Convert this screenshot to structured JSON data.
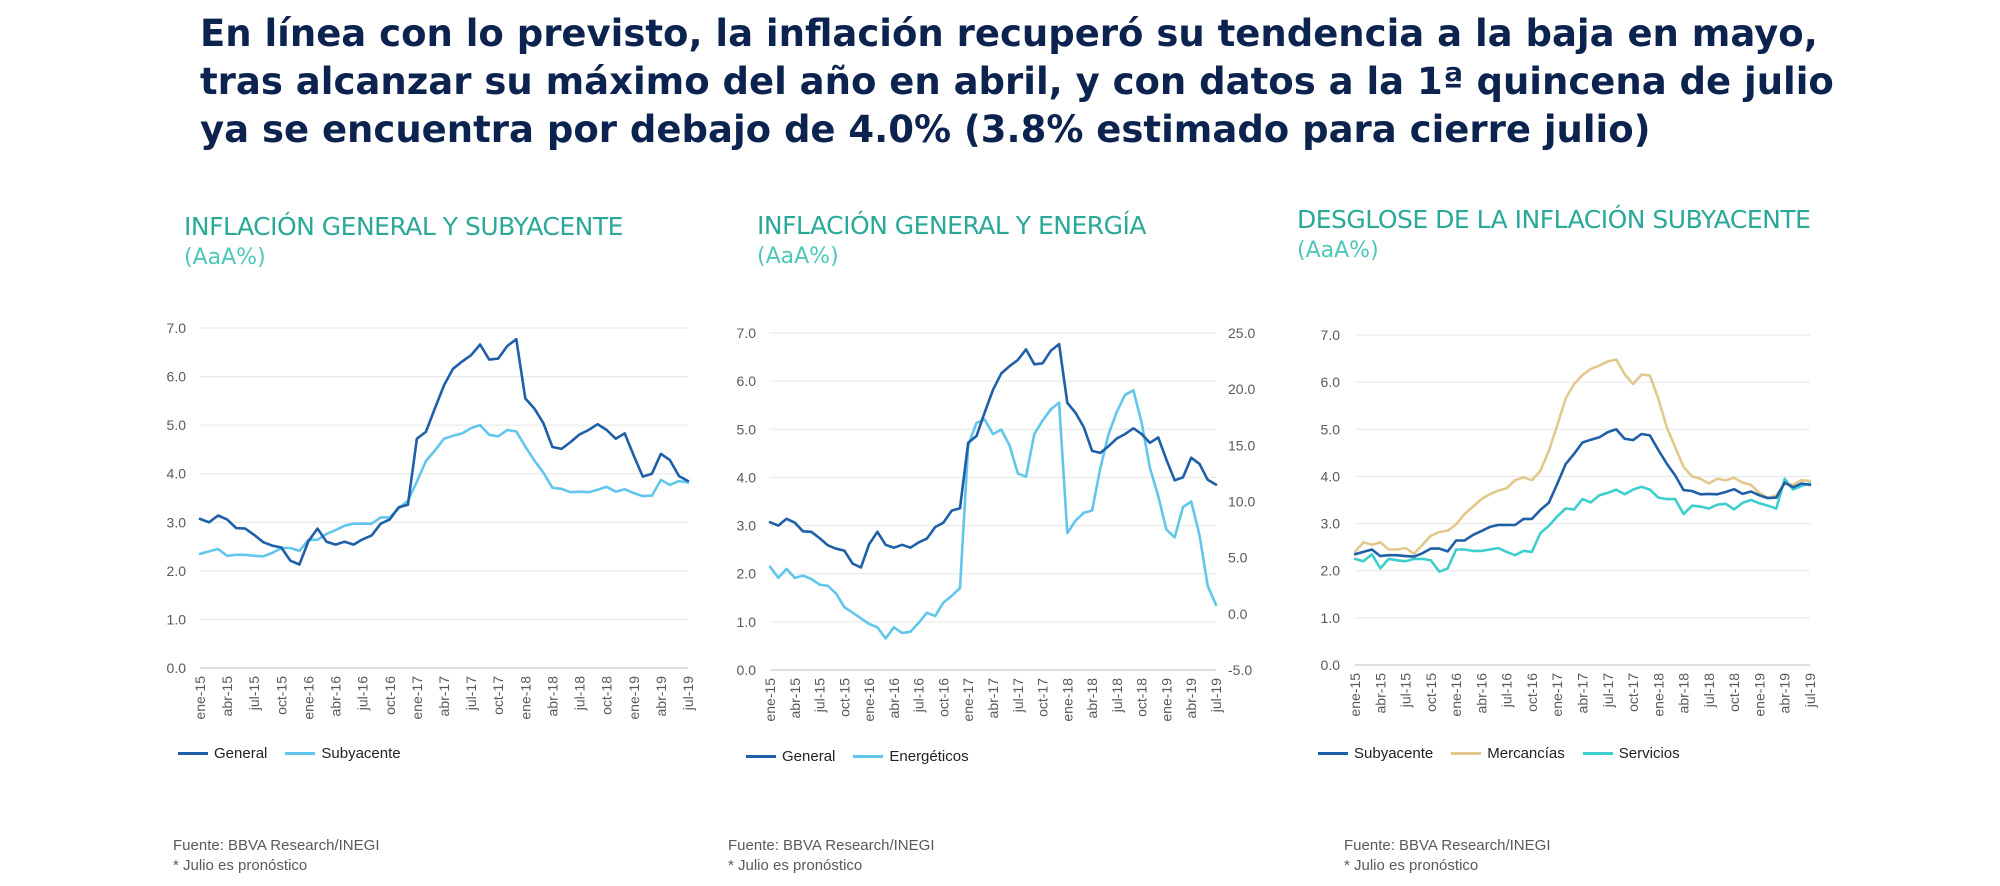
{
  "headline": {
    "line1": "En línea con lo previsto, la inflación recuperó su tendencia a la baja en mayo,",
    "line2": "tras alcanzar su máximo del año en abril, y con datos a la 1ª quincena de julio",
    "line3": "ya se encuentra por debajo de 4.0% (3.8% estimado para cierre julio)"
  },
  "footer": {
    "source": "Fuente: BBVA Research/INEGI",
    "note": "* Julio es pronóstico"
  },
  "chart_data": [
    {
      "type": "line",
      "title": "INFLACIÓN GENERAL Y SUBYACENTE",
      "subtitle": "(AaA%)",
      "ylim": [
        0,
        7
      ],
      "yticks": [
        "0.0",
        "1.0",
        "2.0",
        "3.0",
        "4.0",
        "5.0",
        "6.0",
        "7.0"
      ],
      "x_tick_labels": [
        "ene-15",
        "abr-15",
        "jul-15",
        "oct-15",
        "ene-16",
        "abr-16",
        "jul-16",
        "oct-16",
        "ene-17",
        "abr-17",
        "jul-17",
        "oct-17",
        "ene-18",
        "abr-18",
        "jul-18",
        "oct-18",
        "ene-19",
        "abr-19",
        "jul-19"
      ],
      "series": [
        {
          "name": "General",
          "color": "#1f5fa8",
          "axis": "left",
          "values": [
            3.07,
            3.0,
            3.14,
            3.06,
            2.88,
            2.87,
            2.74,
            2.59,
            2.52,
            2.48,
            2.21,
            2.13,
            2.61,
            2.87,
            2.6,
            2.54,
            2.6,
            2.54,
            2.65,
            2.73,
            2.97,
            3.06,
            3.31,
            3.36,
            4.72,
            4.86,
            5.35,
            5.82,
            6.16,
            6.31,
            6.44,
            6.66,
            6.35,
            6.37,
            6.63,
            6.77,
            5.55,
            5.34,
            5.04,
            4.55,
            4.51,
            4.65,
            4.81,
            4.9,
            5.02,
            4.9,
            4.72,
            4.83,
            4.37,
            3.94,
            4.0,
            4.41,
            4.28,
            3.95,
            3.85
          ]
        },
        {
          "name": "Subyacente",
          "color": "#62c6ec",
          "axis": "left",
          "values": [
            2.35,
            2.4,
            2.45,
            2.31,
            2.33,
            2.33,
            2.31,
            2.3,
            2.37,
            2.47,
            2.47,
            2.41,
            2.64,
            2.64,
            2.76,
            2.84,
            2.93,
            2.97,
            2.97,
            2.97,
            3.1,
            3.1,
            3.29,
            3.44,
            3.84,
            4.26,
            4.48,
            4.72,
            4.78,
            4.83,
            4.94,
            5.0,
            4.8,
            4.77,
            4.9,
            4.87,
            4.56,
            4.27,
            4.02,
            3.71,
            3.69,
            3.62,
            3.63,
            3.62,
            3.67,
            3.73,
            3.63,
            3.68,
            3.6,
            3.54,
            3.55,
            3.87,
            3.77,
            3.85,
            3.82
          ]
        }
      ],
      "legend": [
        "General",
        "Subyacente"
      ]
    },
    {
      "type": "line",
      "title": "INFLACIÓN GENERAL Y ENERGÍA",
      "subtitle": "(AaA%)",
      "ylim": [
        0,
        7
      ],
      "y2lim": [
        -5,
        25
      ],
      "yticks": [
        "0.0",
        "1.0",
        "2.0",
        "3.0",
        "4.0",
        "5.0",
        "6.0",
        "7.0"
      ],
      "y2ticks": [
        "-5.0",
        "0.0",
        "5.0",
        "10.0",
        "15.0",
        "20.0",
        "25.0"
      ],
      "x_tick_labels": [
        "ene-15",
        "abr-15",
        "jul-15",
        "oct-15",
        "ene-16",
        "abr-16",
        "jul-16",
        "oct-16",
        "ene-17",
        "abr-17",
        "jul-17",
        "oct-17",
        "ene-18",
        "abr-18",
        "jul-18",
        "oct-18",
        "ene-19",
        "abr-19",
        "jul-19"
      ],
      "series": [
        {
          "name": "General",
          "color": "#1f5fa8",
          "axis": "left",
          "values": [
            3.07,
            3.0,
            3.14,
            3.06,
            2.88,
            2.87,
            2.74,
            2.59,
            2.52,
            2.48,
            2.21,
            2.13,
            2.61,
            2.87,
            2.6,
            2.54,
            2.6,
            2.54,
            2.65,
            2.73,
            2.97,
            3.06,
            3.31,
            3.36,
            4.72,
            4.86,
            5.35,
            5.82,
            6.16,
            6.31,
            6.44,
            6.66,
            6.35,
            6.37,
            6.63,
            6.77,
            5.55,
            5.34,
            5.04,
            4.55,
            4.51,
            4.65,
            4.81,
            4.9,
            5.02,
            4.9,
            4.72,
            4.83,
            4.37,
            3.94,
            4.0,
            4.41,
            4.28,
            3.95,
            3.85
          ]
        },
        {
          "name": "Energéticos",
          "color": "#62c6ec",
          "axis": "right",
          "values": [
            4.2,
            3.2,
            4.0,
            3.2,
            3.4,
            3.1,
            2.6,
            2.5,
            1.8,
            0.6,
            0.1,
            -0.4,
            -0.9,
            -1.2,
            -2.2,
            -1.2,
            -1.7,
            -1.6,
            -0.8,
            0.1,
            -0.2,
            1.0,
            1.6,
            2.3,
            15.0,
            17.0,
            17.3,
            16.0,
            16.4,
            15.0,
            12.5,
            12.2,
            16.0,
            17.2,
            18.2,
            18.8,
            7.2,
            8.3,
            9.0,
            9.2,
            13.0,
            16.0,
            18.0,
            19.5,
            19.9,
            17.0,
            13.0,
            10.5,
            7.5,
            6.8,
            9.5,
            10.0,
            7.0,
            2.5,
            0.8
          ]
        }
      ],
      "legend": [
        "General",
        "Energéticos"
      ]
    },
    {
      "type": "line",
      "title": "DESGLOSE DE LA INFLACIÓN SUBYACENTE",
      "subtitle": "(AaA%)",
      "ylim": [
        0,
        7
      ],
      "yticks": [
        "0.0",
        "1.0",
        "2.0",
        "3.0",
        "4.0",
        "5.0",
        "6.0",
        "7.0"
      ],
      "x_tick_labels": [
        "ene-15",
        "abr-15",
        "jul-15",
        "oct-15",
        "ene-16",
        "abr-16",
        "jul-16",
        "oct-16",
        "ene-17",
        "abr-17",
        "jul-17",
        "oct-17",
        "ene-18",
        "abr-18",
        "jul-18",
        "oct-18",
        "ene-19",
        "abr-19",
        "jul-19"
      ],
      "series": [
        {
          "name": "Subyacente",
          "color": "#1f5fa8",
          "axis": "left",
          "values": [
            2.35,
            2.4,
            2.45,
            2.31,
            2.33,
            2.33,
            2.31,
            2.3,
            2.37,
            2.47,
            2.47,
            2.41,
            2.64,
            2.64,
            2.76,
            2.84,
            2.93,
            2.97,
            2.97,
            2.97,
            3.1,
            3.1,
            3.29,
            3.44,
            3.84,
            4.26,
            4.48,
            4.72,
            4.78,
            4.83,
            4.94,
            5.0,
            4.8,
            4.77,
            4.9,
            4.87,
            4.56,
            4.27,
            4.02,
            3.71,
            3.69,
            3.62,
            3.63,
            3.62,
            3.67,
            3.73,
            3.63,
            3.68,
            3.6,
            3.54,
            3.55,
            3.87,
            3.77,
            3.85,
            3.82
          ]
        },
        {
          "name": "Mercancías",
          "color": "#e2c88c",
          "axis": "left",
          "values": [
            2.4,
            2.6,
            2.55,
            2.6,
            2.45,
            2.45,
            2.48,
            2.36,
            2.55,
            2.74,
            2.82,
            2.85,
            2.98,
            3.2,
            3.36,
            3.52,
            3.62,
            3.7,
            3.75,
            3.92,
            3.98,
            3.92,
            4.12,
            4.54,
            5.08,
            5.65,
            5.96,
            6.15,
            6.28,
            6.35,
            6.44,
            6.48,
            6.17,
            5.96,
            6.16,
            6.14,
            5.65,
            5.04,
            4.62,
            4.2,
            4.0,
            3.95,
            3.85,
            3.95,
            3.92,
            3.97,
            3.87,
            3.82,
            3.65,
            3.54,
            3.6,
            3.85,
            3.82,
            3.92,
            3.9
          ]
        },
        {
          "name": "Servicios",
          "color": "#3ecece",
          "axis": "left",
          "values": [
            2.25,
            2.2,
            2.35,
            2.05,
            2.25,
            2.22,
            2.2,
            2.25,
            2.25,
            2.22,
            1.98,
            2.05,
            2.45,
            2.45,
            2.42,
            2.42,
            2.45,
            2.48,
            2.4,
            2.33,
            2.42,
            2.4,
            2.8,
            2.95,
            3.15,
            3.32,
            3.3,
            3.52,
            3.45,
            3.6,
            3.65,
            3.72,
            3.62,
            3.72,
            3.78,
            3.72,
            3.55,
            3.52,
            3.52,
            3.2,
            3.38,
            3.36,
            3.32,
            3.4,
            3.42,
            3.3,
            3.44,
            3.5,
            3.43,
            3.38,
            3.32,
            3.95,
            3.72,
            3.8,
            3.85
          ]
        }
      ],
      "legend": [
        "Subyacente",
        "Mercancías",
        "Servicios"
      ]
    }
  ]
}
